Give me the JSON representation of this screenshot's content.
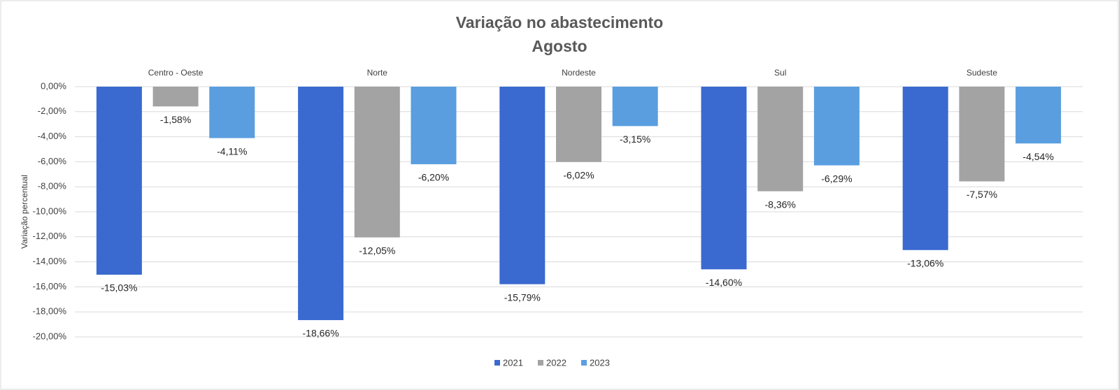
{
  "chart_data": {
    "type": "bar",
    "title": "Variação no abastecimento",
    "subtitle": "Agosto",
    "y_label": "Variação percentual",
    "categories": [
      "Centro - Oeste",
      "Norte",
      "Nordeste",
      "Sul",
      "Sudeste"
    ],
    "series": [
      {
        "name": "2021",
        "color": "#3a6ad0",
        "values": [
          -15.03,
          -18.66,
          -15.79,
          -14.6,
          -13.06
        ],
        "value_labels": [
          "-15,03%",
          "-18,66%",
          "-15,79%",
          "-14,60%",
          "-13,06%"
        ]
      },
      {
        "name": "2022",
        "color": "#a3a3a3",
        "values": [
          -1.58,
          -12.05,
          -6.02,
          -8.36,
          -7.57
        ],
        "value_labels": [
          "-1,58%",
          "-12,05%",
          "-6,02%",
          "-8,36%",
          "-7,57%"
        ]
      },
      {
        "name": "2023",
        "color": "#5a9ee0",
        "values": [
          -4.11,
          -6.2,
          -3.15,
          -6.29,
          -4.54
        ],
        "value_labels": [
          "-4,11%",
          "-6,20%",
          "-3,15%",
          "-6,29%",
          "-4,54%"
        ]
      }
    ],
    "ylim": [
      -20,
      0
    ],
    "yticks": [
      {
        "value": 0,
        "label": "0,00%"
      },
      {
        "value": -2,
        "label": "-2,00%"
      },
      {
        "value": -4,
        "label": "-4,00%"
      },
      {
        "value": -6,
        "label": "-6,00%"
      },
      {
        "value": -8,
        "label": "-8,00%"
      },
      {
        "value": -10,
        "label": "-10,00%"
      },
      {
        "value": -12,
        "label": "-12,00%"
      },
      {
        "value": -14,
        "label": "-14,00%"
      },
      {
        "value": -16,
        "label": "-16,00%"
      },
      {
        "value": -18,
        "label": "-18,00%"
      },
      {
        "value": -20,
        "label": "-20,00%"
      }
    ],
    "grid": true,
    "legend": "bottom"
  }
}
